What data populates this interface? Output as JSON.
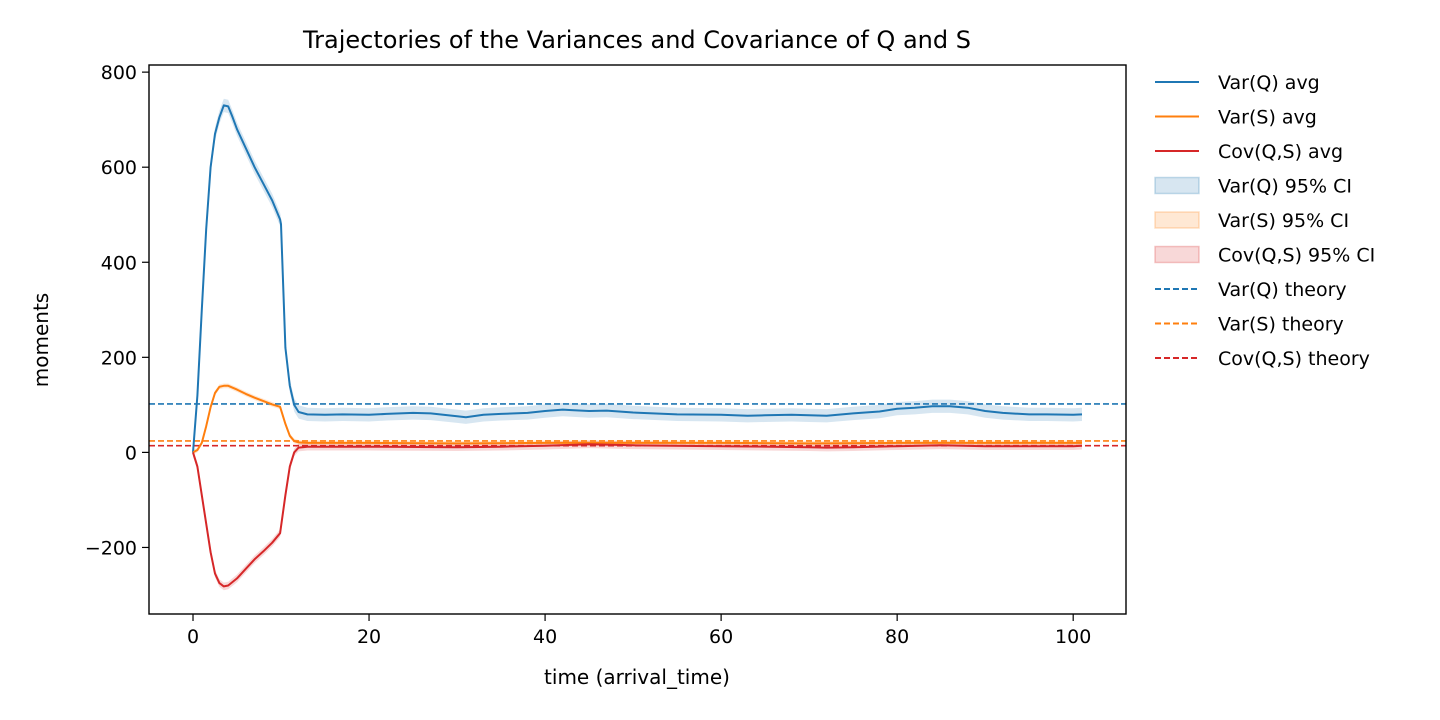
{
  "chart_data": {
    "type": "line",
    "title": "Trajectories of the Variances and Covariance of Q and S",
    "xlabel": "time (arrival_time)",
    "ylabel": "moments",
    "xlim": [
      -5,
      106
    ],
    "ylim": [
      -340,
      815
    ],
    "xticks": [
      0,
      20,
      40,
      60,
      80,
      100
    ],
    "xtick_labels": [
      "0",
      "20",
      "40",
      "60",
      "80",
      "100"
    ],
    "yticks": [
      -200,
      0,
      200,
      400,
      600,
      800
    ],
    "ytick_labels": [
      "−200",
      "0",
      "200",
      "400",
      "600",
      "800"
    ],
    "grid": false,
    "legend_position": "outside-right",
    "series": [
      {
        "name": "Var(Q) avg",
        "color": "#1f77b4",
        "ci_name": "Var(Q) 95% CI",
        "ci_halfwidth": 14,
        "x": [
          0,
          0.5,
          1,
          1.5,
          2,
          2.5,
          3,
          3.5,
          4,
          4.5,
          5,
          6,
          7,
          8,
          9,
          9.9,
          10,
          10.5,
          11,
          11.5,
          12,
          13,
          15,
          17,
          20,
          22,
          25,
          27,
          30,
          31,
          33,
          35,
          38,
          40,
          42,
          43,
          45,
          47,
          50,
          55,
          60,
          63,
          65,
          68,
          70,
          72,
          75,
          78,
          80,
          82,
          84,
          86,
          88,
          90,
          92,
          95,
          97,
          100,
          101
        ],
        "values": [
          0,
          120,
          300,
          470,
          600,
          670,
          705,
          730,
          728,
          705,
          680,
          640,
          600,
          565,
          530,
          490,
          480,
          220,
          140,
          100,
          85,
          80,
          79,
          80,
          79,
          81,
          83,
          82,
          76,
          74,
          79,
          81,
          83,
          87,
          90,
          89,
          87,
          88,
          84,
          80,
          79,
          77,
          78,
          79,
          78,
          77,
          82,
          86,
          92,
          94,
          97,
          97,
          94,
          87,
          83,
          80,
          80,
          79,
          80
        ]
      },
      {
        "name": "Var(S) avg",
        "color": "#ff7f0e",
        "ci_name": "Var(S) 95% CI",
        "ci_halfwidth": 5,
        "x": [
          0,
          0.5,
          1,
          1.5,
          2,
          2.5,
          3,
          3.5,
          4,
          4.5,
          5,
          6,
          7,
          8,
          9,
          9.9,
          10.5,
          11,
          11.5,
          12,
          13,
          15,
          20,
          30,
          40,
          50,
          60,
          70,
          80,
          90,
          100,
          101
        ],
        "values": [
          0,
          5,
          20,
          55,
          95,
          125,
          138,
          140,
          140,
          136,
          132,
          123,
          115,
          108,
          101,
          96,
          60,
          35,
          24,
          21,
          20,
          20,
          20,
          19,
          20,
          20,
          20,
          19,
          20,
          20,
          20,
          20
        ]
      },
      {
        "name": "Cov(Q,S) avg",
        "color": "#d62728",
        "ci_name": "Cov(Q,S) 95% CI",
        "ci_halfwidth": 8,
        "x": [
          0,
          0.5,
          1,
          1.5,
          2,
          2.5,
          3,
          3.5,
          4,
          5,
          6,
          7,
          8,
          9,
          9.9,
          10.5,
          11,
          11.5,
          12,
          13,
          15,
          20,
          30,
          35,
          40,
          45,
          50,
          60,
          70,
          72,
          75,
          80,
          85,
          90,
          100,
          101
        ],
        "values": [
          0,
          -30,
          -90,
          -150,
          -210,
          -255,
          -275,
          -282,
          -280,
          -265,
          -245,
          -225,
          -208,
          -190,
          -170,
          -90,
          -30,
          0,
          10,
          12,
          12,
          12,
          11,
          12,
          14,
          17,
          15,
          13,
          11,
          10,
          11,
          13,
          15,
          13,
          13,
          14
        ]
      }
    ],
    "theory_lines": [
      {
        "name": "Var(Q) theory",
        "color": "#1f77b4",
        "value": 102
      },
      {
        "name": "Var(S) theory",
        "color": "#ff7f0e",
        "value": 24
      },
      {
        "name": "Cov(Q,S) theory",
        "color": "#d62728",
        "value": 14
      }
    ],
    "legend": [
      {
        "label": "Var(Q) avg",
        "kind": "line",
        "color": "#1f77b4"
      },
      {
        "label": "Var(S) avg",
        "kind": "line",
        "color": "#ff7f0e"
      },
      {
        "label": "Cov(Q,S) avg",
        "kind": "line",
        "color": "#d62728"
      },
      {
        "label": "Var(Q) 95% CI",
        "kind": "patch",
        "color": "#1f77b4"
      },
      {
        "label": "Var(S) 95% CI",
        "kind": "patch",
        "color": "#ff7f0e"
      },
      {
        "label": "Cov(Q,S) 95% CI",
        "kind": "patch",
        "color": "#d62728"
      },
      {
        "label": "Var(Q) theory",
        "kind": "dashed",
        "color": "#1f77b4"
      },
      {
        "label": "Var(S) theory",
        "kind": "dashed",
        "color": "#ff7f0e"
      },
      {
        "label": "Cov(Q,S) theory",
        "kind": "dashed",
        "color": "#d62728"
      }
    ]
  }
}
